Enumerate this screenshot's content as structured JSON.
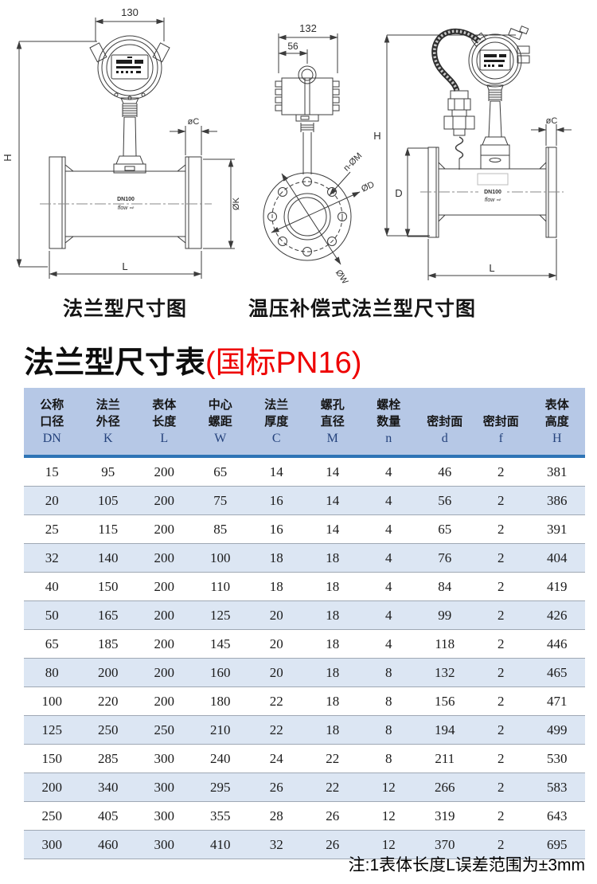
{
  "diagrams": {
    "caption_left": "法兰型尺寸图",
    "caption_right": "温压补偿式法兰型尺寸图",
    "d1": {
      "top_width": "130",
      "height": "H",
      "flange_thickness": "øC",
      "flange_od": "ØK",
      "length": "L",
      "body": "DN100",
      "flow": "flow ⇨"
    },
    "d2": {
      "head_width": "132",
      "head_offset": "56",
      "bolt_holes": "n-ØM",
      "bore": "ØD",
      "bolt_circle": "ØW"
    },
    "d3": {
      "height": "H",
      "flange_thickness": "øC",
      "flange_diameter": "D",
      "length": "L",
      "body": "DN100",
      "flow": "flow ⇨"
    }
  },
  "title": {
    "main": "法兰型尺寸表",
    "paren": "(国标PN16)"
  },
  "table": {
    "headers": [
      {
        "l1": "公称",
        "l2": "口径",
        "sym": "DN"
      },
      {
        "l1": "法兰",
        "l2": "外径",
        "sym": "K"
      },
      {
        "l1": "表体",
        "l2": "长度",
        "sym": "L"
      },
      {
        "l1": "中心",
        "l2": "螺距",
        "sym": "W"
      },
      {
        "l1": "法兰",
        "l2": "厚度",
        "sym": "C"
      },
      {
        "l1": "螺孔",
        "l2": "直径",
        "sym": "M"
      },
      {
        "l1": "螺栓",
        "l2": "数量",
        "sym": "n"
      },
      {
        "l1": "",
        "l2": "密封面",
        "sym": "d"
      },
      {
        "l1": "",
        "l2": "密封面",
        "sym": "f"
      },
      {
        "l1": "表体",
        "l2": "高度",
        "sym": "H"
      }
    ],
    "rows": [
      [
        15,
        95,
        200,
        65,
        14,
        14,
        4,
        46,
        2,
        381
      ],
      [
        20,
        105,
        200,
        75,
        16,
        14,
        4,
        56,
        2,
        386
      ],
      [
        25,
        115,
        200,
        85,
        16,
        14,
        4,
        65,
        2,
        391
      ],
      [
        32,
        140,
        200,
        100,
        18,
        18,
        4,
        76,
        2,
        404
      ],
      [
        40,
        150,
        200,
        110,
        18,
        18,
        4,
        84,
        2,
        419
      ],
      [
        50,
        165,
        200,
        125,
        20,
        18,
        4,
        99,
        2,
        426
      ],
      [
        65,
        185,
        200,
        145,
        20,
        18,
        4,
        118,
        2,
        446
      ],
      [
        80,
        200,
        200,
        160,
        20,
        18,
        8,
        132,
        2,
        465
      ],
      [
        100,
        220,
        200,
        180,
        22,
        18,
        8,
        156,
        2,
        471
      ],
      [
        125,
        250,
        250,
        210,
        22,
        18,
        8,
        194,
        2,
        499
      ],
      [
        150,
        285,
        300,
        240,
        24,
        22,
        8,
        211,
        2,
        530
      ],
      [
        200,
        340,
        300,
        295,
        26,
        22,
        12,
        266,
        2,
        583
      ],
      [
        250,
        405,
        300,
        355,
        28,
        26,
        12,
        319,
        2,
        643
      ],
      [
        300,
        460,
        300,
        410,
        32,
        26,
        12,
        370,
        2,
        695
      ]
    ]
  },
  "note": "注:1表体长度L误差范围为±3mm",
  "colors": {
    "header_bg": "#b6c8e6",
    "row_shade": "#dce6f3",
    "accent_line": "#2e74b6",
    "title_red": "#ee0000"
  }
}
